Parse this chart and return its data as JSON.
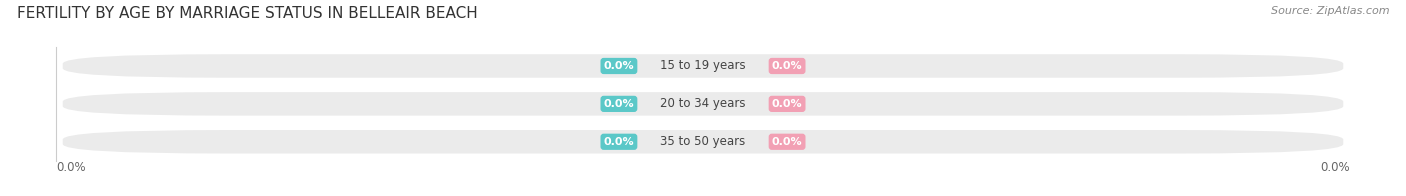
{
  "title": "FERTILITY BY AGE BY MARRIAGE STATUS IN BELLEAIR BEACH",
  "source": "Source: ZipAtlas.com",
  "categories": [
    "15 to 19 years",
    "20 to 34 years",
    "35 to 50 years"
  ],
  "married_values": [
    0.0,
    0.0,
    0.0
  ],
  "unmarried_values": [
    0.0,
    0.0,
    0.0
  ],
  "married_color": "#5BC8C8",
  "unmarried_color": "#F2A0B4",
  "bar_bg_color": "#EBEBEB",
  "bar_height": 0.62,
  "xlim": [
    -1,
    1
  ],
  "left_label": "0.0%",
  "right_label": "0.0%",
  "title_fontsize": 11,
  "source_fontsize": 8,
  "label_fontsize": 8.5,
  "legend_fontsize": 9,
  "fig_bg_color": "#FFFFFF",
  "ax_bg_color": "#FFFFFF",
  "bar_gap": 0.38
}
